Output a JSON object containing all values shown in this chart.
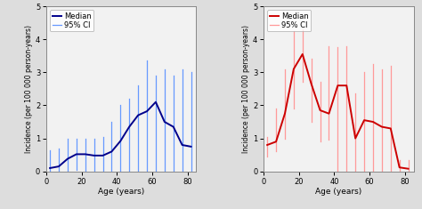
{
  "left": {
    "ages": [
      2,
      7,
      12,
      17,
      22,
      27,
      32,
      37,
      42,
      47,
      52,
      57,
      62,
      67,
      72,
      77,
      82
    ],
    "median": [
      0.1,
      0.15,
      0.38,
      0.52,
      0.52,
      0.48,
      0.48,
      0.6,
      0.92,
      1.35,
      1.7,
      1.82,
      2.1,
      1.5,
      1.35,
      0.8,
      0.75
    ],
    "ci_low": [
      0.0,
      0.0,
      0.0,
      0.05,
      0.0,
      0.0,
      0.0,
      0.0,
      0.0,
      0.0,
      0.0,
      0.0,
      0.0,
      0.0,
      0.0,
      0.0,
      0.0
    ],
    "ci_high": [
      0.65,
      0.7,
      1.0,
      1.0,
      1.0,
      1.0,
      1.05,
      1.5,
      2.0,
      2.2,
      2.6,
      3.35,
      2.9,
      3.1,
      2.9,
      3.1,
      3.0
    ],
    "color_median": "#00008B",
    "color_ci": "#6699FF",
    "ylabel": "Incidence (per 100 000 person-years)",
    "xlabel": "Age (years)",
    "xlim": [
      0,
      85
    ],
    "ylim": [
      0,
      5
    ],
    "yticks": [
      0,
      1,
      2,
      3,
      4,
      5
    ],
    "xticks": [
      0,
      20,
      40,
      60,
      80
    ]
  },
  "right": {
    "ages": [
      2,
      7,
      12,
      17,
      22,
      27,
      32,
      37,
      42,
      47,
      52,
      57,
      62,
      67,
      72,
      77,
      82
    ],
    "median": [
      0.8,
      0.9,
      1.75,
      3.1,
      3.55,
      2.65,
      1.85,
      1.75,
      2.6,
      2.6,
      1.0,
      1.55,
      1.5,
      1.35,
      1.3,
      0.12,
      0.08
    ],
    "ci_low": [
      0.45,
      0.6,
      1.0,
      1.9,
      2.7,
      1.5,
      0.9,
      0.95,
      0.0,
      0.0,
      0.0,
      0.0,
      0.0,
      0.0,
      0.0,
      0.0,
      0.0
    ],
    "ci_high": [
      1.05,
      1.9,
      3.1,
      4.25,
      4.3,
      3.4,
      2.7,
      3.8,
      3.75,
      3.8,
      2.35,
      3.0,
      3.25,
      3.1,
      3.2,
      0.35,
      0.35
    ],
    "color_median": "#CC0000",
    "color_ci": "#FF9999",
    "ylabel": "Incidence (per 100 000 person-years)",
    "xlabel": "Age (years)",
    "xlim": [
      0,
      85
    ],
    "ylim": [
      0,
      5
    ],
    "yticks": [
      0,
      1,
      2,
      3,
      4,
      5
    ],
    "xticks": [
      0,
      20,
      40,
      60,
      80
    ]
  },
  "bg_color": "#DDDDDD",
  "plot_bg": "#F2F2F2",
  "figsize": [
    4.74,
    2.35
  ],
  "dpi": 100
}
